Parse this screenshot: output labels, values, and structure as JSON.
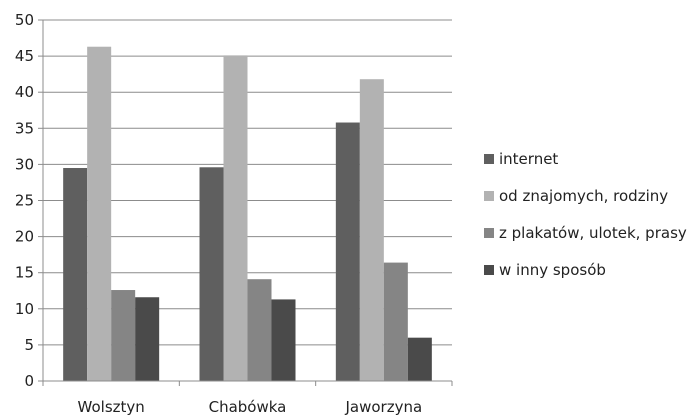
{
  "chart_data": {
    "type": "bar",
    "title": "",
    "xlabel": "",
    "ylabel": "",
    "categories": [
      "Wolsztyn",
      "Chabówka",
      "Jaworzyna"
    ],
    "ylim": [
      0,
      50
    ],
    "yticks": [
      0,
      5,
      10,
      15,
      20,
      25,
      30,
      35,
      40,
      45,
      50
    ],
    "grid": true,
    "legend_position": "right",
    "series": [
      {
        "name": "internet",
        "color": "#5f5f5f",
        "values": [
          29.5,
          29.6,
          35.8
        ]
      },
      {
        "name": "od znajomych, rodziny",
        "color": "#b2b2b2",
        "values": [
          46.3,
          45.1,
          41.8
        ]
      },
      {
        "name": "z plakatów, ulotek, prasy",
        "color": "#858585",
        "values": [
          12.6,
          14.1,
          16.4
        ]
      },
      {
        "name": "w inny sposób",
        "color": "#4a4a4a",
        "values": [
          11.6,
          11.3,
          6.0
        ]
      }
    ]
  }
}
